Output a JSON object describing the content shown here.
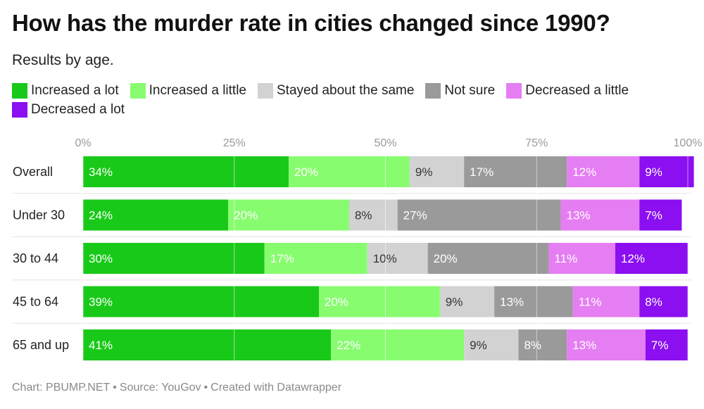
{
  "title": "How has the murder rate in cities changed since 1990?",
  "subtitle": "Results by age.",
  "footer": {
    "chart": "Chart: PBUMP.NET",
    "source": "Source: YouGov",
    "credit": "Created with Datawrapper",
    "separator": "•"
  },
  "chart_data": {
    "type": "bar",
    "orientation": "horizontal-stacked",
    "categories": [
      "Overall",
      "Under 30",
      "30 to 44",
      "45 to 64",
      "65 and up"
    ],
    "x_ticks": [
      "0%",
      "25%",
      "50%",
      "75%",
      "100%"
    ],
    "xlim": [
      0,
      100
    ],
    "grid": true,
    "legend_position": "top",
    "series": [
      {
        "name": "Increased a lot",
        "color": "#19c919",
        "values": [
          34,
          24,
          30,
          39,
          41
        ],
        "labels": [
          "34%",
          "24%",
          "30%",
          "39%",
          "41%"
        ]
      },
      {
        "name": "Increased a little",
        "color": "#88fc6f",
        "values": [
          20,
          20,
          17,
          20,
          22
        ],
        "labels": [
          "20%",
          "20%",
          "17%",
          "20%",
          "22%"
        ]
      },
      {
        "name": "Stayed about the same",
        "color": "#d2d2d2",
        "values": [
          9,
          8,
          10,
          9,
          9
        ],
        "labels": [
          "9%",
          "8%",
          "10%",
          "9%",
          "9%"
        ]
      },
      {
        "name": "Not sure",
        "color": "#9a9a9a",
        "values": [
          17,
          27,
          20,
          13,
          8
        ],
        "labels": [
          "17%",
          "27%",
          "20%",
          "13%",
          "8%"
        ]
      },
      {
        "name": "Decreased a little",
        "color": "#e57ef2",
        "values": [
          12,
          13,
          11,
          11,
          13
        ],
        "labels": [
          "12%",
          "13%",
          "11%",
          "11%",
          "13%"
        ]
      },
      {
        "name": "Decreased a lot",
        "color": "#8b0ff0",
        "values": [
          9,
          7,
          12,
          8,
          7
        ],
        "labels": [
          "9%",
          "7%",
          "12%",
          "8%",
          "7%"
        ]
      }
    ]
  }
}
